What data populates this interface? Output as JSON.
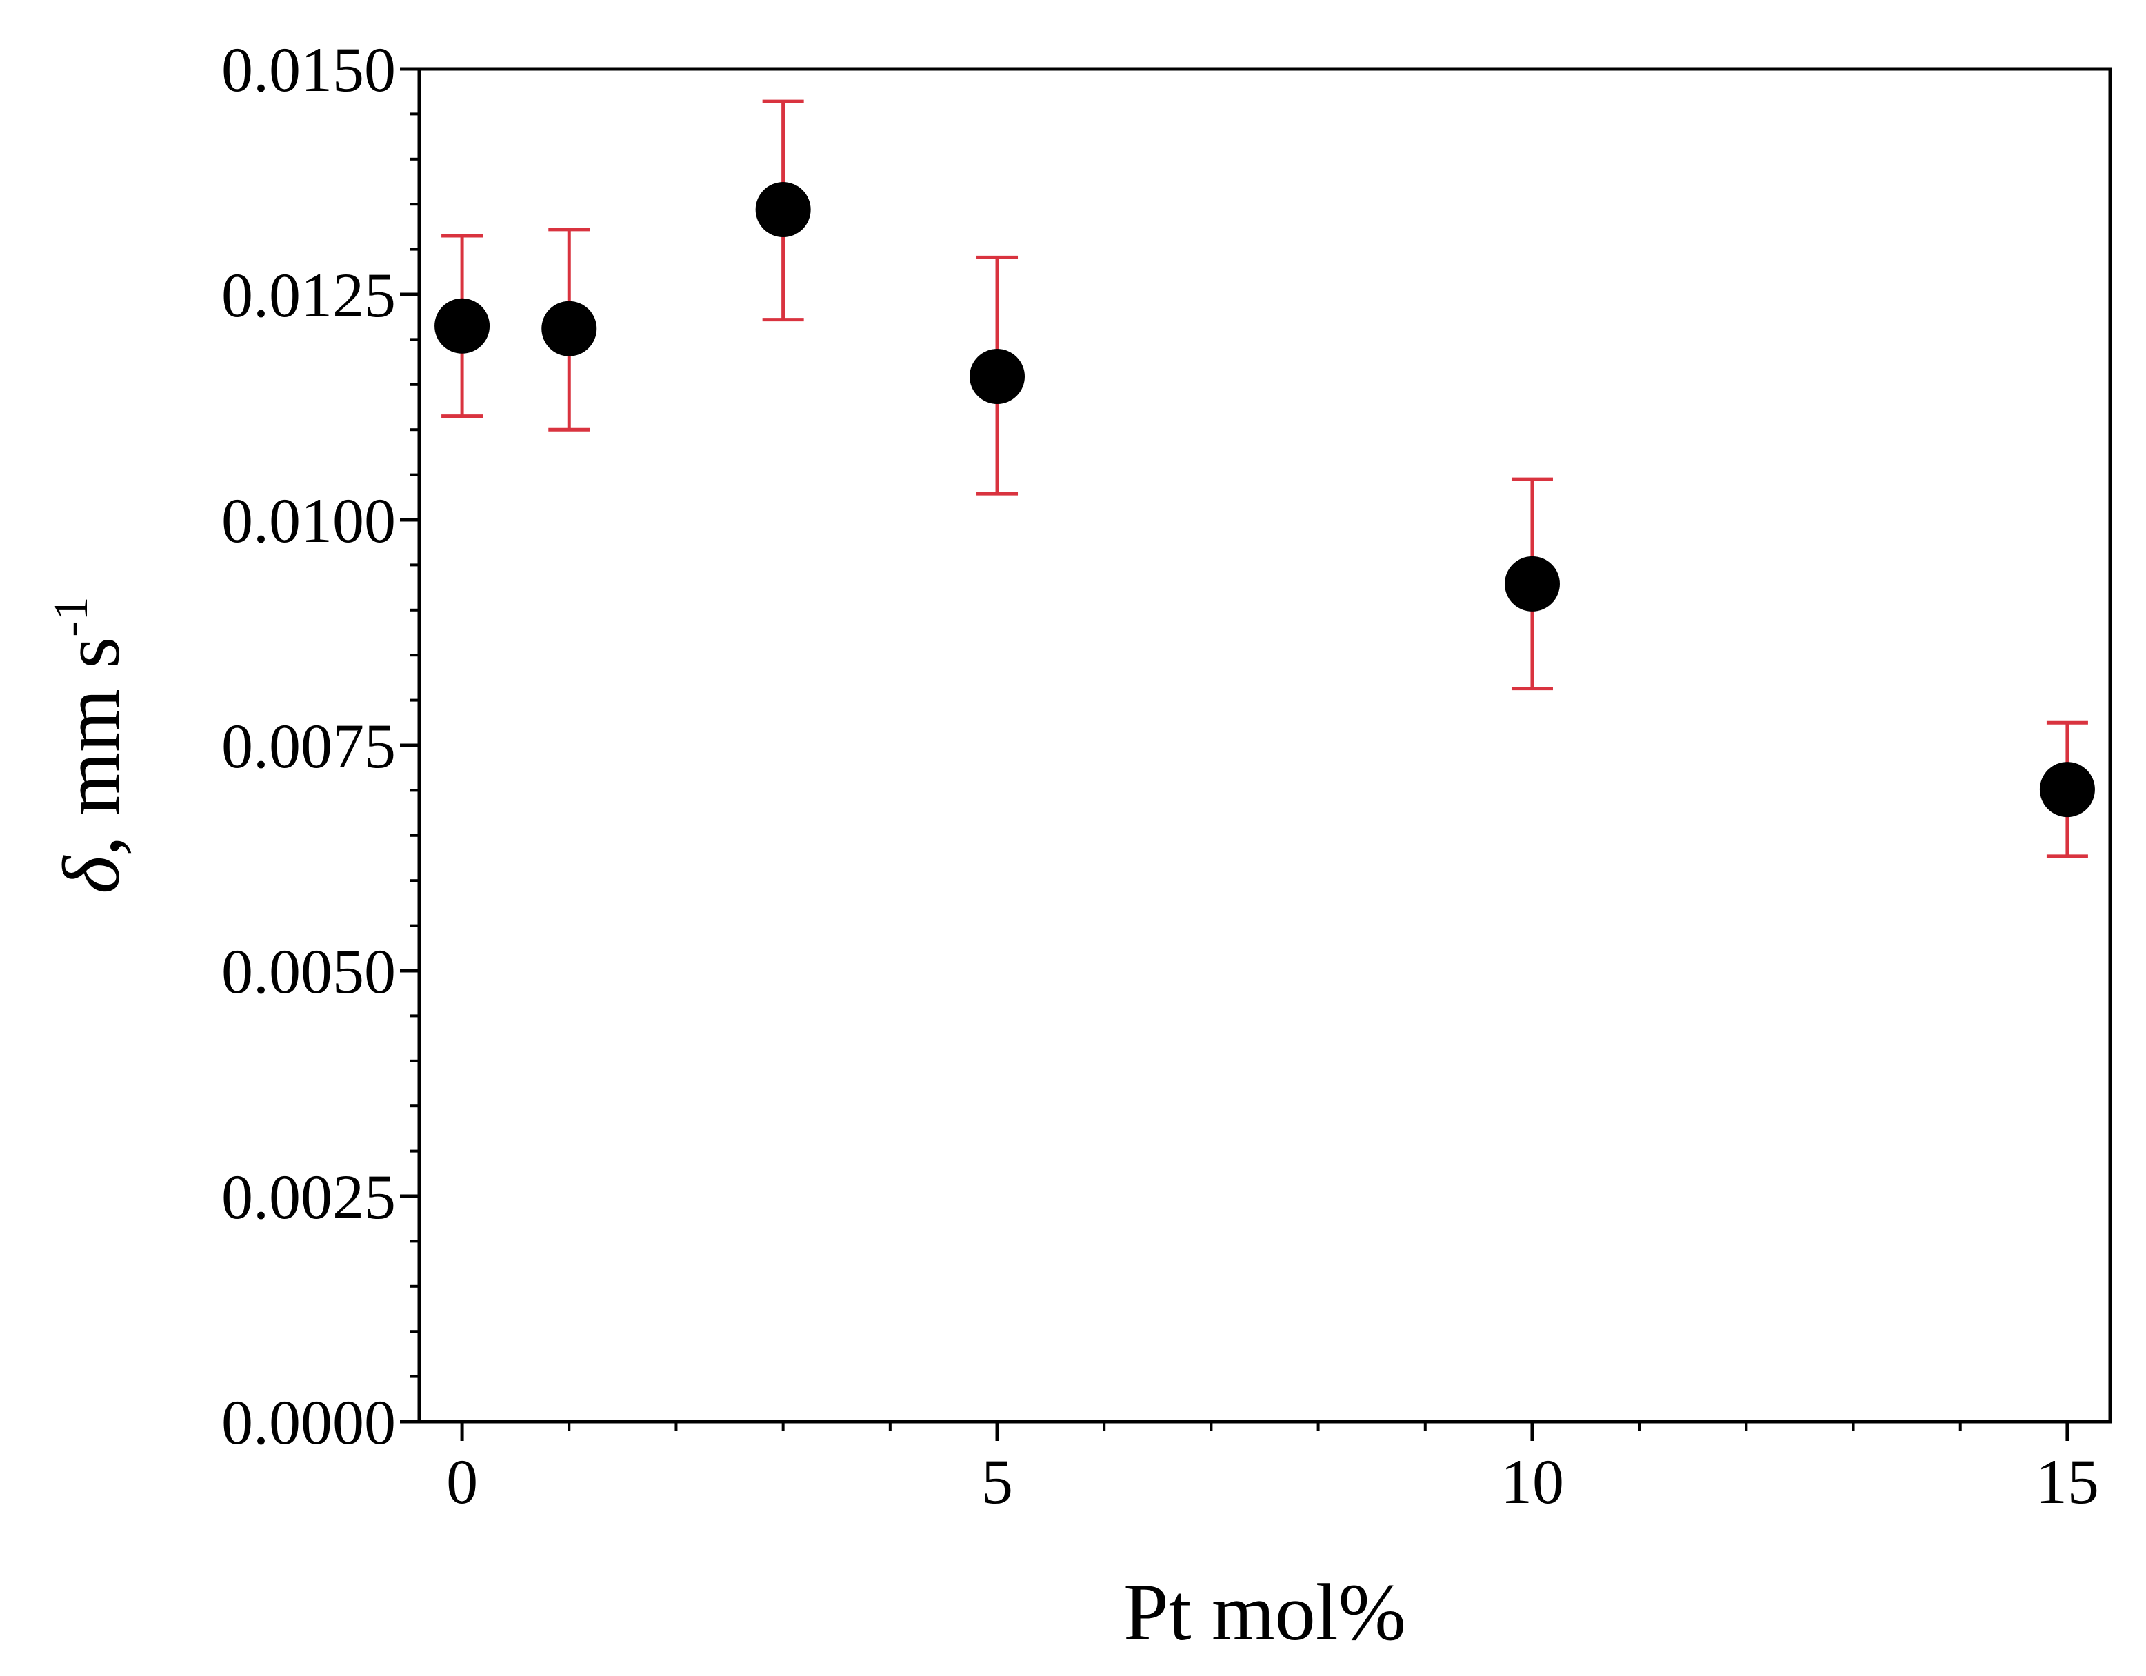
{
  "chart_data": {
    "type": "scatter",
    "title": "",
    "xlabel": "Pt mol%",
    "ylabel": {
      "symbol": "δ",
      "text": ", mm s",
      "superscript": "-1"
    },
    "xlim": [
      -0.4,
      15.4
    ],
    "ylim": [
      0.0,
      0.015
    ],
    "xticks": [
      0,
      5,
      10,
      15
    ],
    "xtick_labels": [
      "0",
      "5",
      "10",
      "15"
    ],
    "yticks": [
      0.0,
      0.0025,
      0.005,
      0.0075,
      0.01,
      0.0125,
      0.015
    ],
    "ytick_labels": [
      "0.0000",
      "0.0025",
      "0.0050",
      "0.0075",
      "0.0100",
      "0.0125",
      "0.0150"
    ],
    "grid": false,
    "series": [
      {
        "name": "delta",
        "x": [
          0,
          1,
          3,
          5,
          10,
          15
        ],
        "y": [
          0.01215,
          0.01212,
          0.01344,
          0.01159,
          0.00929,
          0.00701
        ],
        "err_low": [
          0.01115,
          0.011,
          0.01222,
          0.01029,
          0.00813,
          0.00627
        ],
        "err_high": [
          0.01315,
          0.01322,
          0.01464,
          0.01291,
          0.01045,
          0.00775
        ]
      }
    ],
    "colors": {
      "marker": "#000000",
      "errorbar": "#d9333f",
      "axis": "#000000"
    }
  }
}
